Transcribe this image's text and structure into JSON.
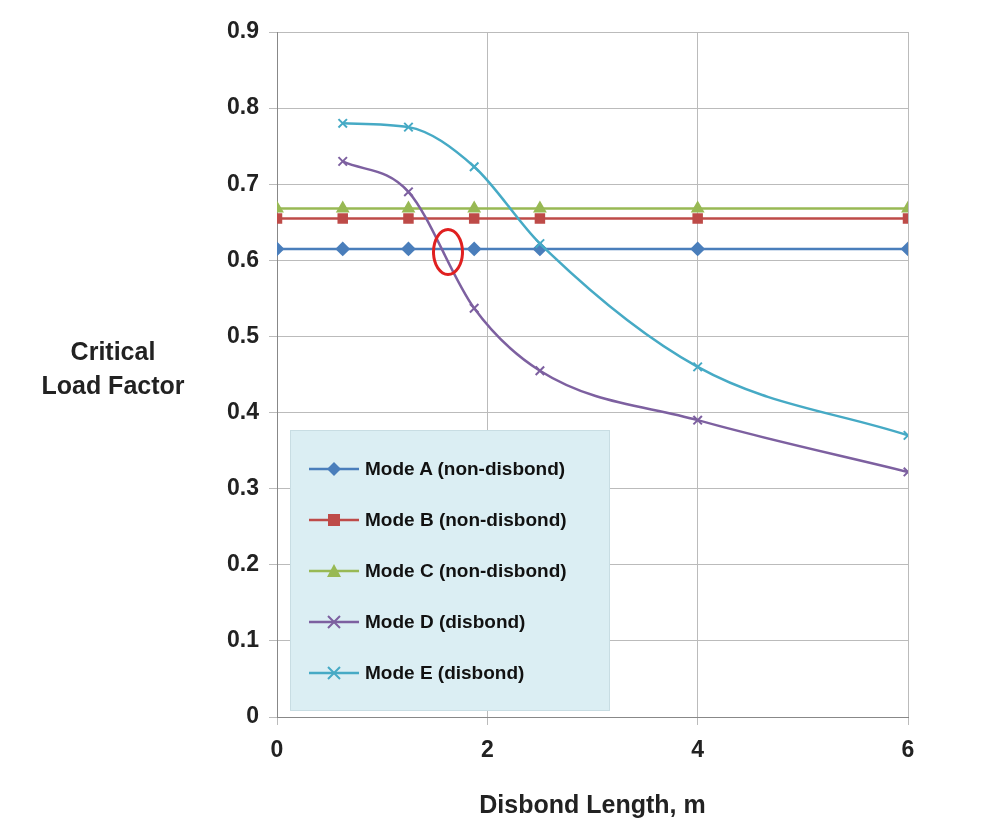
{
  "chart_data": {
    "type": "line",
    "xlabel": "Disbond Length, m",
    "ylabel": "Critical Load Factor",
    "xlim": [
      0,
      6
    ],
    "xticks": [
      0,
      2,
      4,
      6
    ],
    "ylim": [
      0,
      0.9
    ],
    "yticks": [
      0,
      0.1,
      0.2,
      0.3,
      0.4,
      0.5,
      0.6,
      0.7,
      0.8,
      0.9
    ],
    "grid": true,
    "legend": "bottom left",
    "series": [
      {
        "name": "Mode A (non-disbond)",
        "color": "#4a7ebb",
        "marker": "diamond",
        "x": [
          0,
          0.625,
          1.25,
          1.875,
          2.5,
          4,
          6
        ],
        "values": [
          0.615,
          0.615,
          0.615,
          0.615,
          0.615,
          0.615,
          0.615
        ]
      },
      {
        "name": "Mode B (non-disbond)",
        "color": "#be4b48",
        "marker": "square",
        "x": [
          0,
          0.625,
          1.25,
          1.875,
          2.5,
          4,
          6
        ],
        "values": [
          0.655,
          0.655,
          0.655,
          0.655,
          0.655,
          0.655,
          0.655
        ]
      },
      {
        "name": "Mode C (non-disbond)",
        "color": "#98b954",
        "marker": "triangle",
        "x": [
          0,
          0.625,
          1.25,
          1.875,
          2.5,
          4,
          6
        ],
        "values": [
          0.668,
          0.668,
          0.668,
          0.668,
          0.668,
          0.668,
          0.668
        ]
      },
      {
        "name": "Mode D (disbond)",
        "color": "#7d60a0",
        "marker": "cross",
        "x": [
          0.625,
          1.25,
          1.875,
          2.5,
          4,
          6
        ],
        "values": [
          0.73,
          0.69,
          0.537,
          0.455,
          0.39,
          0.322
        ]
      },
      {
        "name": "Mode E (disbond)",
        "color": "#46aac5",
        "marker": "cross",
        "x": [
          0.625,
          1.25,
          1.875,
          2.5,
          4,
          6
        ],
        "values": [
          0.78,
          0.775,
          0.723,
          0.622,
          0.46,
          0.37
        ]
      }
    ]
  }
}
